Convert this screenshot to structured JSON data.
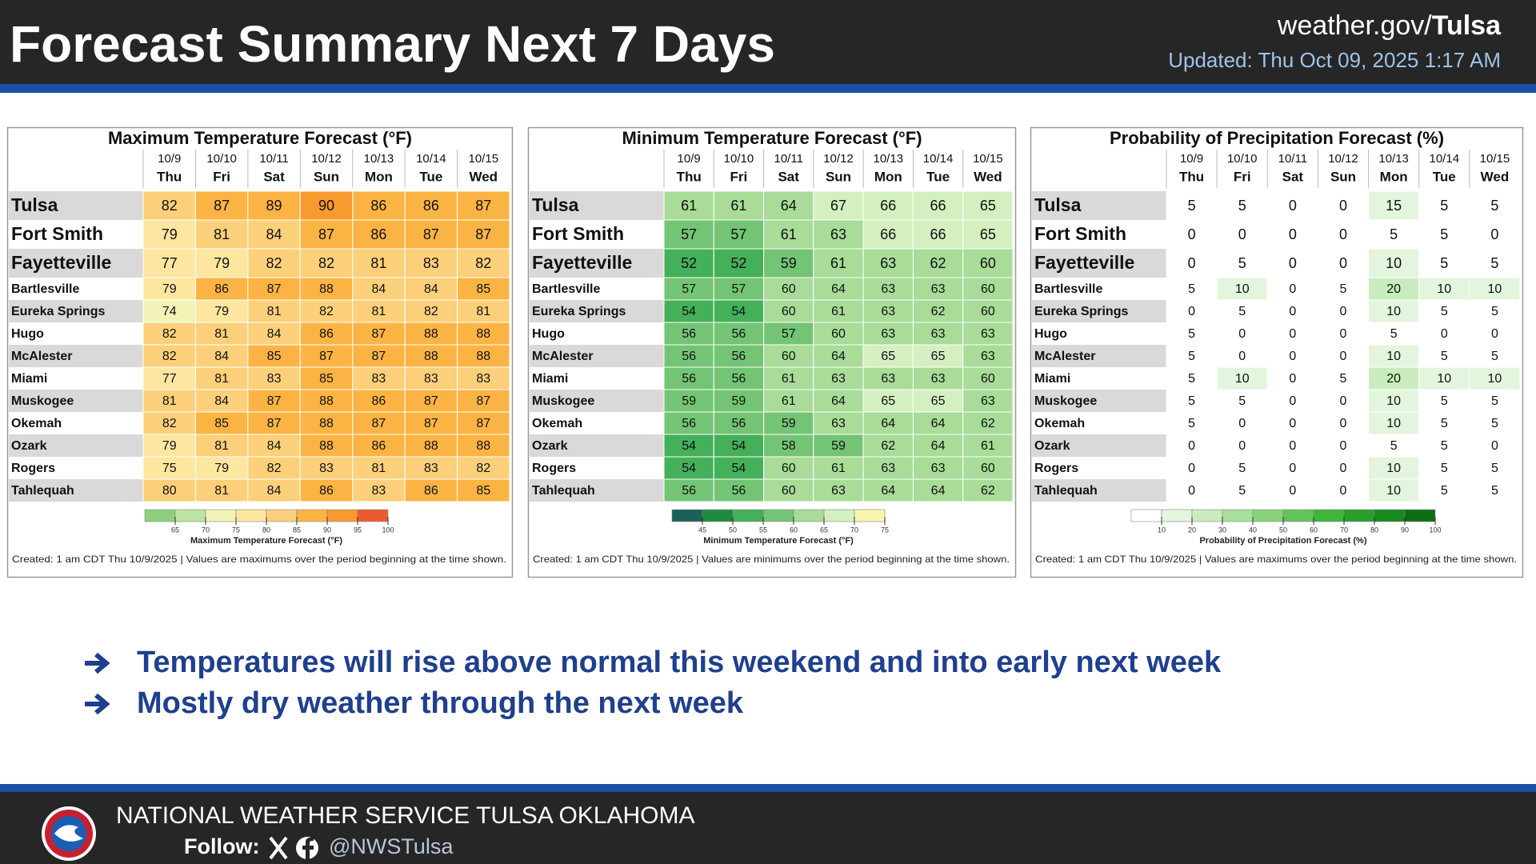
{
  "header": {
    "title": "Forecast Summary Next 7 Days",
    "site_prefix": "weather.gov/",
    "site_name": "Tulsa",
    "updated": "Updated: Thu Oct 09, 2025 1:17 AM"
  },
  "tables": [
    {
      "title": "Maximum Temperature Forecast (°F)",
      "dates": [
        "10/9",
        "10/10",
        "10/11",
        "10/12",
        "10/13",
        "10/14",
        "10/15"
      ],
      "days": [
        "Thu",
        "Fri",
        "Sat",
        "Sun",
        "Mon",
        "Tue",
        "Wed"
      ],
      "rows": [
        {
          "name": "Tulsa",
          "values": [
            82,
            87,
            89,
            90,
            86,
            86,
            87
          ]
        },
        {
          "name": "Fort Smith",
          "values": [
            79,
            81,
            84,
            87,
            86,
            87,
            87
          ]
        },
        {
          "name": "Fayetteville",
          "values": [
            77,
            79,
            82,
            82,
            81,
            83,
            82
          ]
        },
        {
          "name": "Bartlesville",
          "values": [
            79,
            86,
            87,
            88,
            84,
            84,
            85
          ]
        },
        {
          "name": "Eureka Springs",
          "values": [
            74,
            79,
            81,
            82,
            81,
            82,
            81
          ]
        },
        {
          "name": "Hugo",
          "values": [
            82,
            81,
            84,
            86,
            87,
            88,
            88
          ]
        },
        {
          "name": "McAlester",
          "values": [
            82,
            84,
            85,
            87,
            87,
            88,
            88
          ]
        },
        {
          "name": "Miami",
          "values": [
            77,
            81,
            83,
            85,
            83,
            83,
            83
          ]
        },
        {
          "name": "Muskogee",
          "values": [
            81,
            84,
            87,
            88,
            86,
            87,
            87
          ]
        },
        {
          "name": "Okemah",
          "values": [
            82,
            85,
            87,
            88,
            87,
            87,
            87
          ]
        },
        {
          "name": "Ozark",
          "values": [
            79,
            81,
            84,
            88,
            86,
            88,
            88
          ]
        },
        {
          "name": "Rogers",
          "values": [
            75,
            79,
            82,
            83,
            81,
            83,
            82
          ]
        },
        {
          "name": "Tahlequah",
          "values": [
            80,
            81,
            84,
            86,
            83,
            86,
            85
          ]
        }
      ],
      "legend": {
        "label": "Maximum Temperature Forecast (°F)",
        "ticks": [
          65,
          70,
          75,
          80,
          85,
          90,
          95,
          100
        ],
        "colors": [
          "#8dcf7e",
          "#bde3a2",
          "#f1f4b6",
          "#fde6a0",
          "#fcd07a",
          "#fbb443",
          "#f89a2e",
          "#ee5a2f"
        ]
      },
      "footer": "Created: 1 am CDT Thu 10/9/2025  |  Values are maximums over the period beginning at the time shown."
    },
    {
      "title": "Minimum Temperature Forecast (°F)",
      "dates": [
        "10/9",
        "10/10",
        "10/11",
        "10/12",
        "10/13",
        "10/14",
        "10/15"
      ],
      "days": [
        "Thu",
        "Fri",
        "Sat",
        "Sun",
        "Mon",
        "Tue",
        "Wed"
      ],
      "rows": [
        {
          "name": "Tulsa",
          "values": [
            61,
            61,
            64,
            67,
            66,
            66,
            65
          ]
        },
        {
          "name": "Fort Smith",
          "values": [
            57,
            57,
            61,
            63,
            66,
            66,
            65
          ]
        },
        {
          "name": "Fayetteville",
          "values": [
            52,
            52,
            59,
            61,
            63,
            62,
            60
          ]
        },
        {
          "name": "Bartlesville",
          "values": [
            57,
            57,
            60,
            64,
            63,
            63,
            60
          ]
        },
        {
          "name": "Eureka Springs",
          "values": [
            54,
            54,
            60,
            61,
            63,
            62,
            60
          ]
        },
        {
          "name": "Hugo",
          "values": [
            56,
            56,
            57,
            60,
            63,
            63,
            63
          ]
        },
        {
          "name": "McAlester",
          "values": [
            56,
            56,
            60,
            64,
            65,
            65,
            63
          ]
        },
        {
          "name": "Miami",
          "values": [
            56,
            56,
            61,
            63,
            63,
            63,
            60
          ]
        },
        {
          "name": "Muskogee",
          "values": [
            59,
            59,
            61,
            64,
            65,
            65,
            63
          ]
        },
        {
          "name": "Okemah",
          "values": [
            56,
            56,
            59,
            63,
            64,
            64,
            62
          ]
        },
        {
          "name": "Ozark",
          "values": [
            54,
            54,
            58,
            59,
            62,
            64,
            61
          ]
        },
        {
          "name": "Rogers",
          "values": [
            54,
            54,
            60,
            61,
            63,
            63,
            60
          ]
        },
        {
          "name": "Tahlequah",
          "values": [
            56,
            56,
            60,
            63,
            64,
            64,
            62
          ]
        }
      ],
      "legend": {
        "label": "Minimum Temperature Forecast (°F)",
        "ticks": [
          45,
          50,
          55,
          60,
          65,
          70,
          75
        ],
        "colors": [
          "#1b6157",
          "#1f8a3d",
          "#44b05a",
          "#74c476",
          "#a8dc98",
          "#d4f0c1",
          "#f7f5b0"
        ]
      },
      "footer": "Created: 1 am CDT Thu 10/9/2025  |  Values are minimums over the period beginning at the time shown."
    },
    {
      "title": "Probability of Precipitation Forecast (%)",
      "dates": [
        "10/9",
        "10/10",
        "10/11",
        "10/12",
        "10/13",
        "10/14",
        "10/15"
      ],
      "days": [
        "Thu",
        "Fri",
        "Sat",
        "Sun",
        "Mon",
        "Tue",
        "Wed"
      ],
      "rows": [
        {
          "name": "Tulsa",
          "values": [
            5,
            5,
            0,
            0,
            15,
            5,
            5
          ]
        },
        {
          "name": "Fort Smith",
          "values": [
            0,
            0,
            0,
            0,
            5,
            5,
            0
          ]
        },
        {
          "name": "Fayetteville",
          "values": [
            0,
            5,
            0,
            0,
            10,
            5,
            5
          ]
        },
        {
          "name": "Bartlesville",
          "values": [
            5,
            10,
            0,
            5,
            20,
            10,
            10
          ]
        },
        {
          "name": "Eureka Springs",
          "values": [
            0,
            5,
            0,
            0,
            10,
            5,
            5
          ]
        },
        {
          "name": "Hugo",
          "values": [
            5,
            0,
            0,
            0,
            5,
            0,
            0
          ]
        },
        {
          "name": "McAlester",
          "values": [
            5,
            0,
            0,
            0,
            10,
            5,
            5
          ]
        },
        {
          "name": "Miami",
          "values": [
            5,
            10,
            0,
            5,
            20,
            10,
            10
          ]
        },
        {
          "name": "Muskogee",
          "values": [
            5,
            5,
            0,
            0,
            10,
            5,
            5
          ]
        },
        {
          "name": "Okemah",
          "values": [
            5,
            0,
            0,
            0,
            10,
            5,
            5
          ]
        },
        {
          "name": "Ozark",
          "values": [
            0,
            0,
            0,
            0,
            5,
            5,
            0
          ]
        },
        {
          "name": "Rogers",
          "values": [
            0,
            5,
            0,
            0,
            10,
            5,
            5
          ]
        },
        {
          "name": "Tahlequah",
          "values": [
            0,
            5,
            0,
            0,
            10,
            5,
            5
          ]
        }
      ],
      "legend": {
        "label": "Probability of Precipitation Forecast (%)",
        "ticks": [
          10,
          20,
          30,
          40,
          50,
          60,
          70,
          80,
          90,
          100
        ],
        "colors": [
          "#ffffff",
          "#e4f5de",
          "#c9ecbe",
          "#a9e09c",
          "#87d27b",
          "#63c35a",
          "#3fb53c",
          "#28a02a",
          "#178a1e",
          "#0b6e14"
        ]
      },
      "footer": "Created: 1 am CDT Thu 10/9/2025  |  Values are maximums over the period beginning at the time shown."
    }
  ],
  "bullets": [
    "Temperatures will rise above normal this weekend and into early next week",
    "Mostly dry weather through the next week"
  ],
  "footer": {
    "org": "NATIONAL WEATHER SERVICE TULSA OKLAHOMA",
    "follow": "Follow:",
    "handle": "@NWSTulsa"
  }
}
